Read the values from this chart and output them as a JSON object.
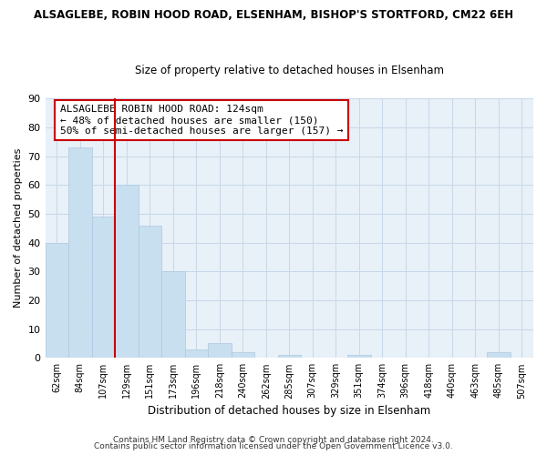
{
  "title": "ALSAGLEBE, ROBIN HOOD ROAD, ELSENHAM, BISHOP'S STORTFORD, CM22 6EH",
  "subtitle": "Size of property relative to detached houses in Elsenham",
  "xlabel": "Distribution of detached houses by size in Elsenham",
  "ylabel": "Number of detached properties",
  "bar_color": "#c8dff0",
  "bar_edge_color": "#aec8e0",
  "grid_color": "#c8d8e8",
  "background_color": "#e8f0f8",
  "tick_labels": [
    "62sqm",
    "84sqm",
    "107sqm",
    "129sqm",
    "151sqm",
    "173sqm",
    "196sqm",
    "218sqm",
    "240sqm",
    "262sqm",
    "285sqm",
    "307sqm",
    "329sqm",
    "351sqm",
    "374sqm",
    "396sqm",
    "418sqm",
    "440sqm",
    "463sqm",
    "485sqm",
    "507sqm"
  ],
  "bar_heights": [
    40,
    73,
    49,
    60,
    46,
    30,
    3,
    5,
    2,
    0,
    1,
    0,
    0,
    1,
    0,
    0,
    0,
    0,
    0,
    2,
    0
  ],
  "vline_color": "#cc0000",
  "annotation_text": "ALSAGLEBE ROBIN HOOD ROAD: 124sqm\n← 48% of detached houses are smaller (150)\n50% of semi-detached houses are larger (157) →",
  "annotation_box_color": "#ffffff",
  "annotation_box_edge_color": "#cc0000",
  "ylim": [
    0,
    90
  ],
  "yticks": [
    0,
    10,
    20,
    30,
    40,
    50,
    60,
    70,
    80,
    90
  ],
  "footer_line1": "Contains HM Land Registry data © Crown copyright and database right 2024.",
  "footer_line2": "Contains public sector information licensed under the Open Government Licence v3.0."
}
